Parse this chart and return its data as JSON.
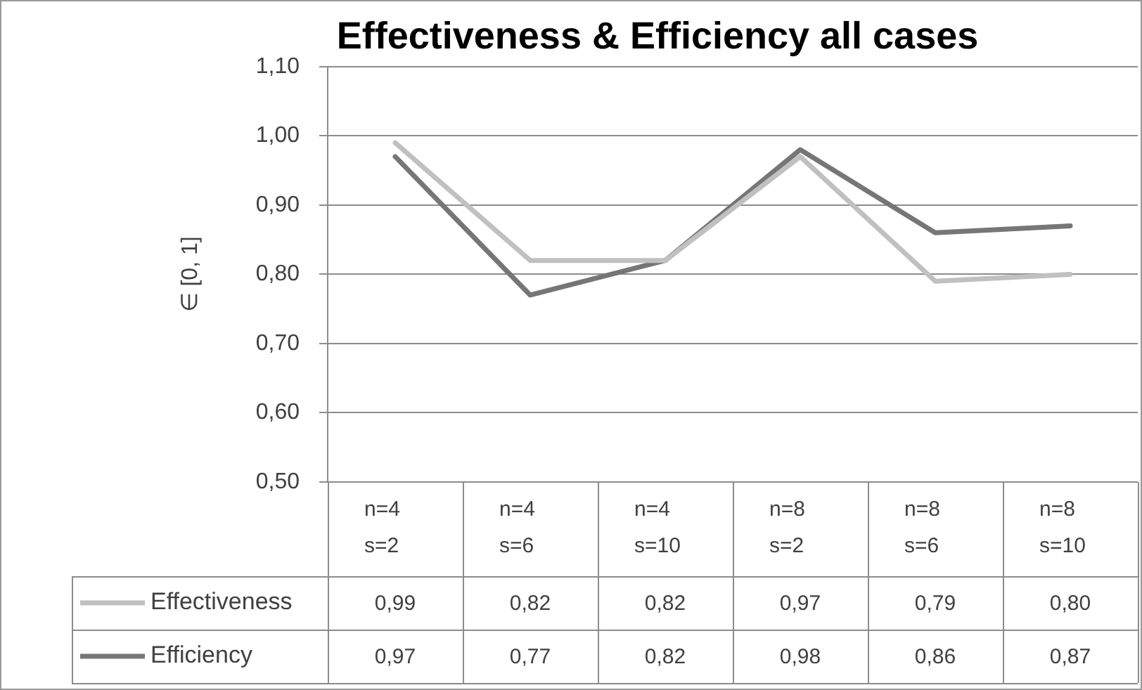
{
  "chart_data": {
    "type": "line",
    "title": "Effectiveness & Efficiency all cases",
    "ylabel": "∈ [0, 1]",
    "categories": [
      "n=4\ns=2",
      "n=4\ns=6",
      "n=4\ns=10",
      "n=8\ns=2",
      "n=8\ns=6",
      "n=8\ns=10"
    ],
    "series": [
      {
        "name": "Effectiveness",
        "color": "#c0c0c0",
        "values": [
          0.99,
          0.82,
          0.82,
          0.97,
          0.79,
          0.8
        ],
        "value_labels": [
          "0,99",
          "0,82",
          "0,82",
          "0,97",
          "0,79",
          "0,80"
        ]
      },
      {
        "name": "Efficiency",
        "color": "#767676",
        "values": [
          0.97,
          0.77,
          0.82,
          0.98,
          0.86,
          0.87
        ],
        "value_labels": [
          "0,97",
          "0,77",
          "0,82",
          "0,98",
          "0,86",
          "0,87"
        ]
      }
    ],
    "ylim": [
      0.5,
      1.1
    ],
    "yticks": [
      {
        "value": 0.5,
        "label": "0,50"
      },
      {
        "value": 0.6,
        "label": "0,60"
      },
      {
        "value": 0.7,
        "label": "0,70"
      },
      {
        "value": 0.8,
        "label": "0,80"
      },
      {
        "value": 0.9,
        "label": "0,90"
      },
      {
        "value": 1.0,
        "label": "1,00"
      },
      {
        "value": 1.1,
        "label": "1,10"
      }
    ],
    "grid": "y",
    "legend": "bottom",
    "marker": "none",
    "line_style": "solid"
  }
}
